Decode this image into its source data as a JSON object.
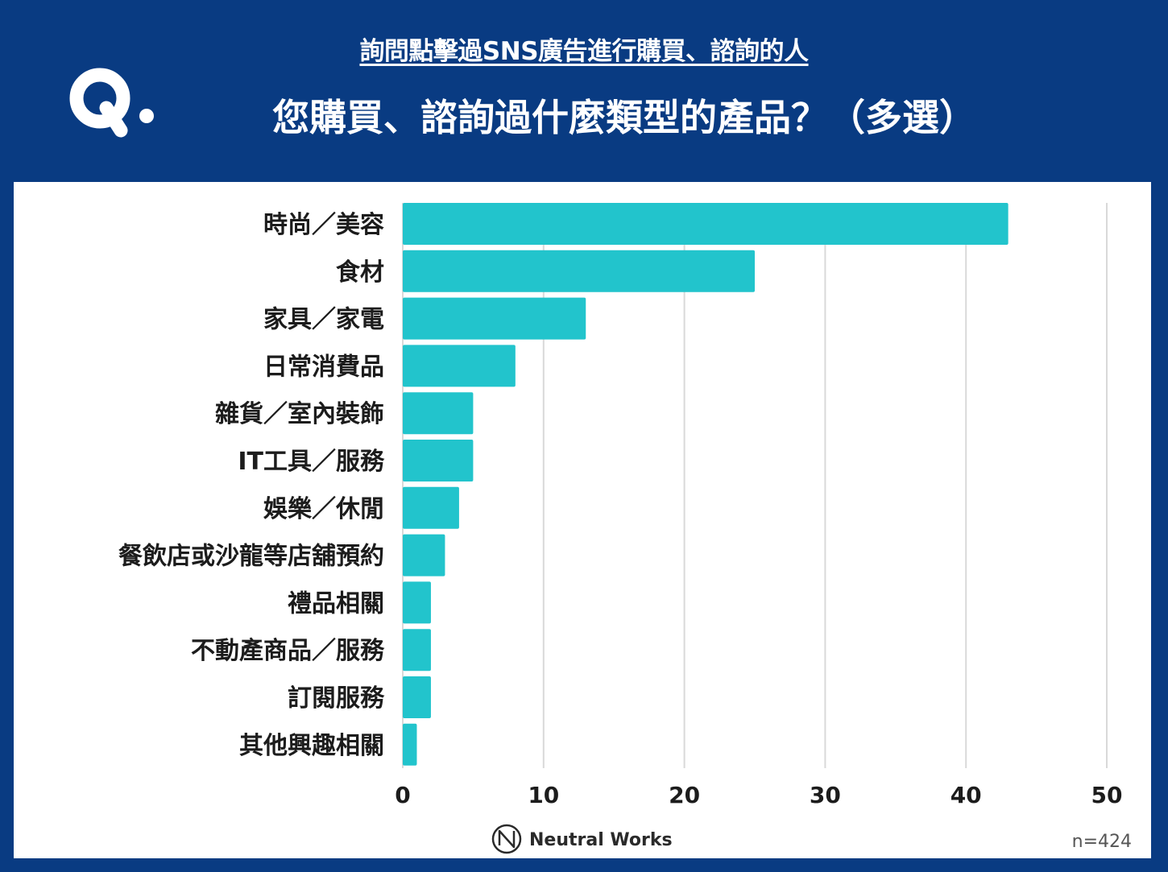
{
  "header": {
    "subtitle": "詢問點擊過SNS廣告進行購買、諮詢的人",
    "title": "您購買、諮詢過什麼類型的產品？（多選）",
    "logo_icon": "q-logo-icon"
  },
  "colors": {
    "background": "#093b82",
    "bar": "#22c4cc",
    "grid": "#d9d9d9"
  },
  "chart_data": {
    "type": "bar",
    "orientation": "horizontal",
    "categories": [
      "時尚／美容",
      "食材",
      "家具／家電",
      "日常消費品",
      "雜貨／室內裝飾",
      "IT工具／服務",
      "娛樂／休閒",
      "餐飲店或沙龍等店舖預約",
      "禮品相關",
      "不動產商品／服務",
      "訂閱服務",
      "其他興趣相關"
    ],
    "values": [
      43,
      25,
      13,
      8,
      5,
      5,
      4,
      3,
      2,
      2,
      2,
      1
    ],
    "xlim": [
      0,
      50
    ],
    "xticks": [
      0,
      10,
      20,
      30,
      40,
      50
    ],
    "grid": "vertical",
    "title": "",
    "xlabel": "",
    "ylabel": ""
  },
  "footer": {
    "brand": "Neutral Works",
    "brand_icon": "neutral-works-logo-icon",
    "n": "n=424"
  }
}
